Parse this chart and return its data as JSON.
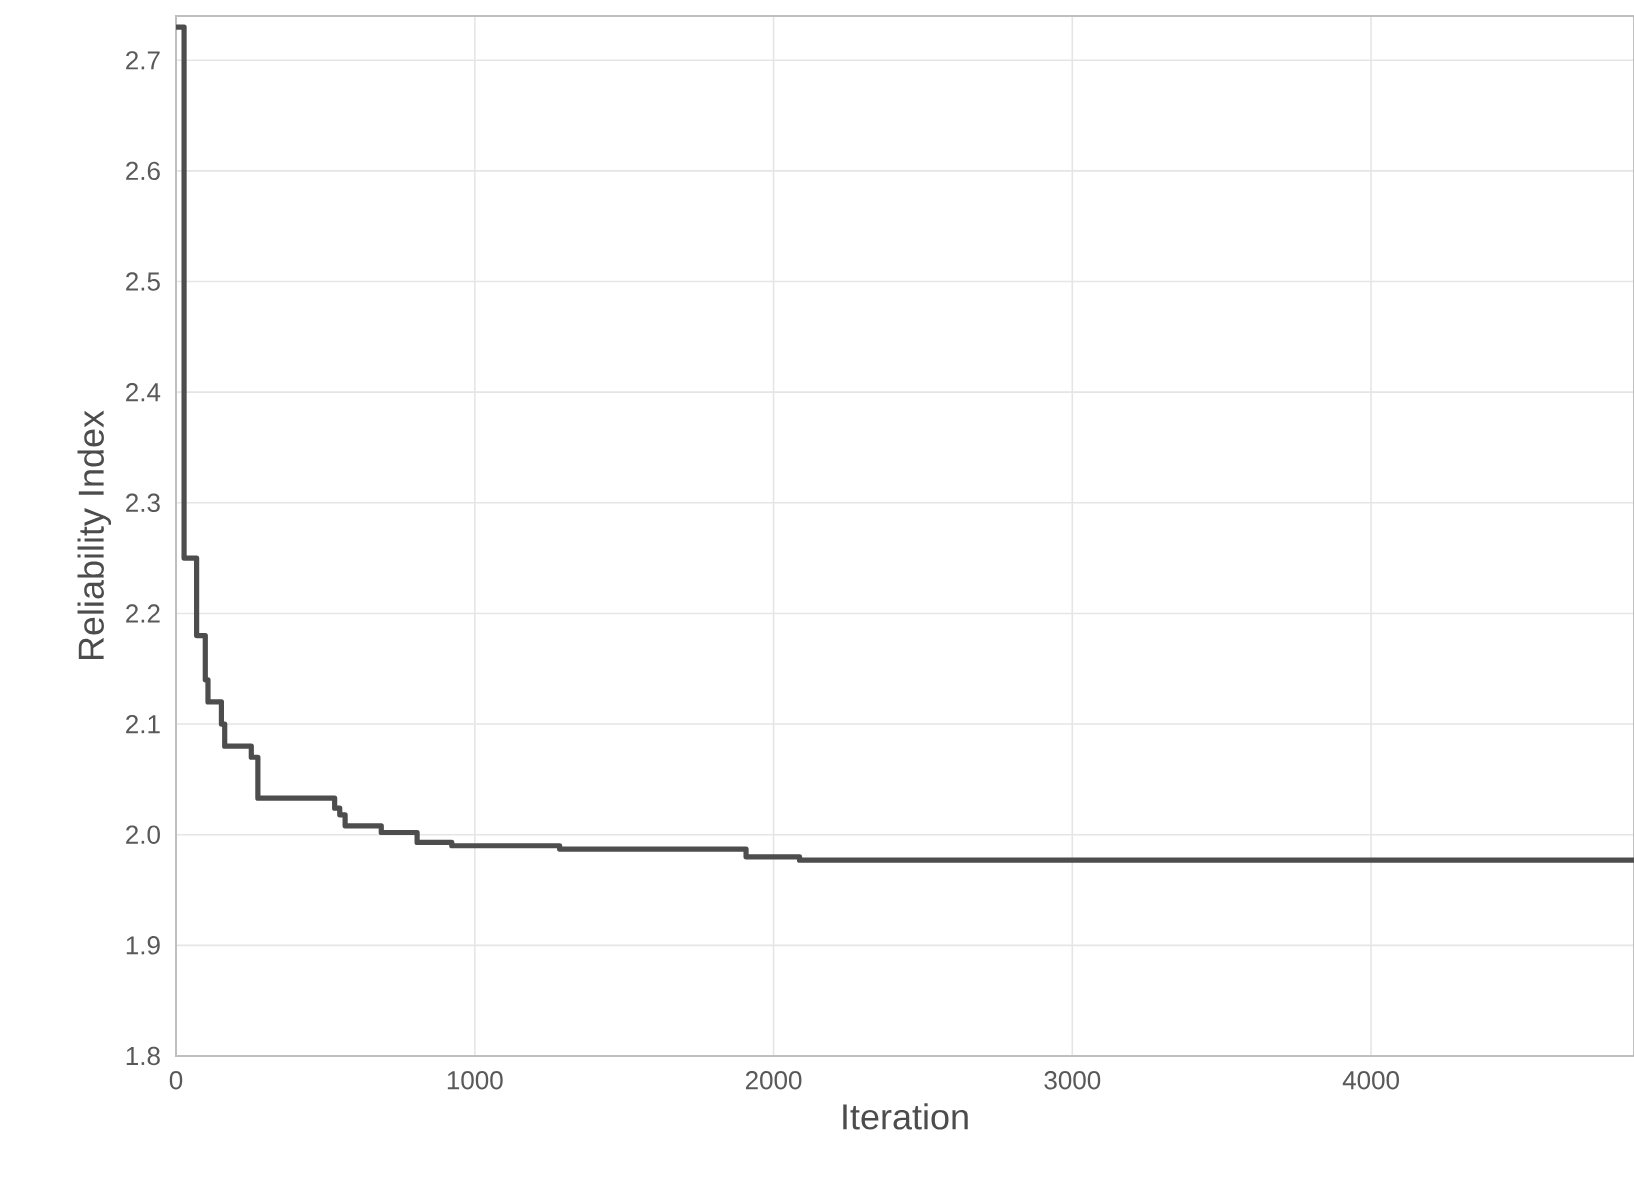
{
  "chart_data": {
    "type": "step",
    "xlabel": "Iteration",
    "ylabel": "Reliability Index",
    "x": [
      0,
      27,
      69,
      98,
      107,
      152,
      163,
      252,
      274,
      531,
      548,
      566,
      687,
      807,
      923,
      1284,
      1908,
      2087,
      4880
    ],
    "series": [
      {
        "color": "#4d4d4d",
        "values": [
          2.73,
          2.25,
          2.18,
          2.14,
          2.12,
          2.1,
          2.08,
          2.07,
          2.033,
          2.024,
          2.018,
          2.008,
          2.002,
          1.993,
          1.99,
          1.987,
          1.98,
          1.977,
          1.977
        ]
      }
    ],
    "xlim": [
      0,
      4880
    ],
    "ylim": [
      1.8,
      2.74
    ],
    "xticks": [
      0,
      1000,
      2000,
      3000,
      4000
    ],
    "yticks": [
      1.8,
      1.9,
      {
        "value": 2,
        "label": "2.0"
      },
      2.1,
      2.2,
      2.3,
      2.4,
      2.5,
      2.6,
      2.7
    ],
    "grid": true,
    "line_style": "solid",
    "marker": "none"
  }
}
